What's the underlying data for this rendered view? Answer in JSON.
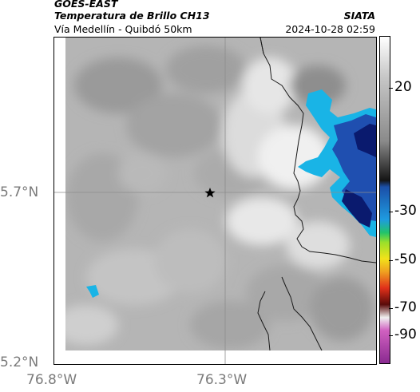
{
  "header": {
    "satellite": "GOES-EAST",
    "product": "Temperatura de Brillo CH13",
    "subtitle": "Vía Medellín - Quibdó 50km",
    "source": "SIATA",
    "datetime": "2024-10-28 02:59"
  },
  "map": {
    "lat_labels": [
      "5.7°N",
      "5.2°N"
    ],
    "lon_labels": [
      "76.8°W",
      "76.3°W"
    ],
    "marker": "star-marker",
    "colors": {
      "cold_core": "#0a1a6e",
      "cold_mid": "#1f4fb0",
      "cold_edge": "#19b4e6",
      "cloud_light": "#f2f2f2",
      "background_gray": "#b5b5b5",
      "border_line": "#1a1a1a",
      "gridline": "#8c8c8c"
    }
  },
  "colorbar": {
    "tick_labels": [
      "20",
      "-30",
      "-50",
      "-70",
      "-90"
    ],
    "stops": [
      {
        "color": "#ffffff"
      },
      {
        "color": "#c8c8c8"
      },
      {
        "color": "#8a8a8a"
      },
      {
        "color": "#141414"
      },
      {
        "color": "#1b4fa8"
      },
      {
        "color": "#1e9be0"
      },
      {
        "color": "#22c46a"
      },
      {
        "color": "#9be02a"
      },
      {
        "color": "#f2e21a"
      },
      {
        "color": "#f0a020"
      },
      {
        "color": "#e0301a"
      },
      {
        "color": "#5a0a0a"
      },
      {
        "color": "#f0f0f0"
      },
      {
        "color": "#d060c0"
      },
      {
        "color": "#8a2a90"
      }
    ]
  }
}
